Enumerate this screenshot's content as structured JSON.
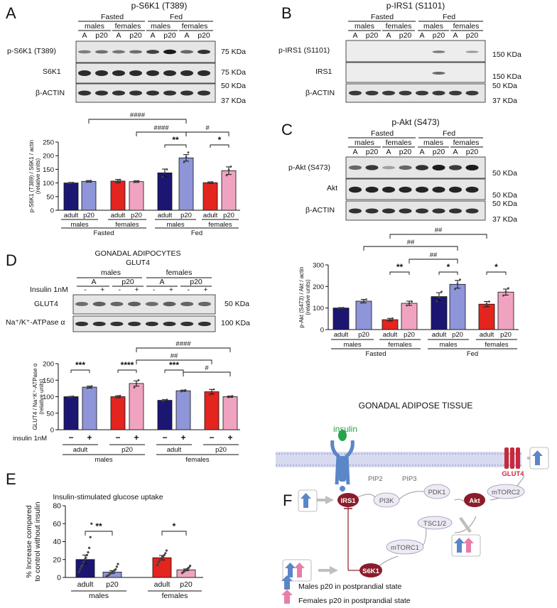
{
  "colors": {
    "navy": "#1c1673",
    "lavender": "#8e95d8",
    "red": "#e4241f",
    "pink": "#f0a3c0",
    "blot_bg": "#e6e6e6",
    "membrane": "#c7c9e6",
    "receptor": "#5b86c8",
    "insulin_green": "#27a34a",
    "node_dark": "#8b1c2a",
    "node_light": "#eeeaf3",
    "glut4_red": "#c8293a"
  },
  "panelA": {
    "label": "A",
    "title": "p-S6K1 (T389)",
    "groups": [
      "Fasted",
      "Fed"
    ],
    "sexes": [
      "males",
      "females",
      "males",
      "females"
    ],
    "lanes": [
      "A",
      "p20",
      "A",
      "p20",
      "A",
      "p20",
      "A",
      "p20"
    ],
    "rows": [
      "p-S6K1 (T389)",
      "S6K1",
      "β-ACTIN"
    ],
    "markers": [
      "75 KDa",
      "75 KDa",
      "50 KDa",
      "37 KDa"
    ]
  },
  "panelB": {
    "label": "B",
    "title": "p-IRS1 (S1101)",
    "groups": [
      "Fasted",
      "Fed"
    ],
    "sexes": [
      "males",
      "females",
      "males",
      "females"
    ],
    "lanes": [
      "A",
      "p20",
      "A",
      "p20",
      "A",
      "p20",
      "A",
      "p20"
    ],
    "rows": [
      "p-IRS1 (S1101)",
      "IRS1",
      "β-ACTIN"
    ],
    "markers": [
      "150 KDa",
      "150 KDa",
      "50 KDa",
      "37 KDa"
    ]
  },
  "panelC": {
    "label": "C",
    "title": "p-Akt (S473)",
    "groups": [
      "Fasted",
      "Fed"
    ],
    "sexes": [
      "males",
      "females",
      "males",
      "females"
    ],
    "lanes": [
      "A",
      "p20",
      "A",
      "p20",
      "A",
      "p20",
      "A",
      "p20"
    ],
    "rows": [
      "p-Akt (S473)",
      "Akt",
      "β-ACTIN"
    ],
    "markers": [
      "50 KDa",
      "50 KDa",
      "50 KDa",
      "37 KDa"
    ]
  },
  "panelD": {
    "label": "D",
    "title1": "GONADAL ADIPOCYTES",
    "title2": "GLUT4",
    "sexes": [
      "males",
      "females"
    ],
    "ages": [
      "A",
      "p20",
      "A",
      "p20"
    ],
    "insulin_label": "Insulin 1nM",
    "insulin": [
      "-",
      "+",
      "-",
      "+",
      "-",
      "+",
      "-",
      "+"
    ],
    "rows": [
      "GLUT4",
      "Na⁺/K⁺-ATPase α"
    ],
    "markers": [
      "50 KDa",
      "100 KDa"
    ]
  },
  "chart_data": [
    {
      "id": "A",
      "type": "bar",
      "ylabel": "p-S6K1 (T389) / S6K1 / actin",
      "ylabel2": "(relative units)",
      "yticks": [
        "0",
        "50",
        "100",
        "150",
        "200",
        "250"
      ],
      "ylim": [
        0,
        250
      ],
      "categories": [
        "adult",
        "p20",
        "adult",
        "p20",
        "adult",
        "p20",
        "adult",
        "p20"
      ],
      "values": [
        100,
        106,
        107,
        105,
        137,
        192,
        101,
        145
      ],
      "errors": [
        2,
        3,
        6,
        3,
        14,
        12,
        3,
        14
      ],
      "points": [
        [
          99,
          100,
          101
        ],
        [
          104,
          106,
          108
        ],
        [
          102,
          107,
          112
        ],
        [
          103,
          105,
          107
        ],
        [
          122,
          137,
          150
        ],
        [
          176,
          195,
          212
        ],
        [
          99,
          101,
          103
        ],
        [
          128,
          148,
          160
        ]
      ],
      "sexes": [
        "males",
        "females",
        "males",
        "females"
      ],
      "conditions": [
        "Fasted",
        "Fed"
      ],
      "annotations": [
        "####",
        "####",
        "#",
        "**",
        "*"
      ]
    },
    {
      "id": "C",
      "type": "bar",
      "ylabel": "p-Akt (S473) / Akt / actin",
      "ylabel2": "(relative units)",
      "yticks": [
        "0",
        "100",
        "200",
        "300"
      ],
      "ylim": [
        0,
        300
      ],
      "categories": [
        "adult",
        "p20",
        "adult",
        "p20",
        "adult",
        "p20",
        "adult",
        "p20"
      ],
      "values": [
        100,
        132,
        46,
        122,
        153,
        210,
        118,
        174
      ],
      "errors": [
        2,
        8,
        6,
        10,
        18,
        18,
        12,
        14
      ],
      "points": [
        [
          99,
          100,
          101
        ],
        [
          124,
          132,
          140
        ],
        [
          40,
          46,
          52
        ],
        [
          112,
          122,
          130
        ],
        [
          132,
          150,
          176
        ],
        [
          188,
          212,
          232
        ],
        [
          104,
          118,
          130
        ],
        [
          158,
          176,
          192
        ]
      ],
      "sexes": [
        "males",
        "females",
        "males",
        "females"
      ],
      "conditions": [
        "Fasted",
        "Fed"
      ],
      "annotations": [
        "##",
        "##",
        "##",
        "**",
        "*",
        "*"
      ]
    },
    {
      "id": "D",
      "type": "bar",
      "ylabel": "GLUT4 / Na⁺K⁺-ATPase α",
      "ylabel2": "(relative units)",
      "yticks": [
        "0",
        "50",
        "100",
        "150",
        "200"
      ],
      "ylim": [
        0,
        200
      ],
      "categories": [
        "−",
        "+",
        "−",
        "+",
        "−",
        "+",
        "−",
        "+"
      ],
      "insulin_row_label": "insulin 1nM",
      "ages": [
        "adult",
        "p20",
        "adult",
        "p20"
      ],
      "sexes": [
        "males",
        "females"
      ],
      "values": [
        100,
        129,
        100,
        140,
        89,
        118,
        115,
        100
      ],
      "errors": [
        1,
        3,
        3,
        8,
        2,
        2,
        7,
        2
      ],
      "points": [
        [
          99,
          100,
          101
        ],
        [
          126,
          129,
          132
        ],
        [
          97,
          100,
          103
        ],
        [
          128,
          140,
          150
        ],
        [
          87,
          89,
          91
        ],
        [
          116,
          118,
          120
        ],
        [
          106,
          115,
          122
        ],
        [
          98,
          100,
          102
        ]
      ],
      "annotations": [
        "####",
        "##",
        "#",
        "***",
        "****",
        "***"
      ]
    },
    {
      "id": "E",
      "type": "bar",
      "title": "Insulin-stimulated glucose uptake",
      "ylabel": "% Increase compared",
      "ylabel2": "to control without insulin",
      "yticks": [
        "0",
        "20",
        "40",
        "60",
        "80"
      ],
      "ylim": [
        0,
        80
      ],
      "categories": [
        "adult",
        "p20",
        "adult",
        "p20"
      ],
      "groups": [
        "males",
        "females"
      ],
      "values": [
        20,
        6,
        22,
        8.5
      ],
      "errors": [
        5,
        1.5,
        2.5,
        1
      ],
      "points": [
        [
          6,
          9,
          12,
          14,
          17,
          20,
          22,
          25,
          28,
          33,
          45,
          60
        ],
        [
          1,
          2,
          3,
          4,
          5,
          6,
          7,
          8,
          9,
          12,
          15
        ],
        [
          14,
          17,
          19,
          20,
          22,
          23,
          25,
          27,
          30
        ],
        [
          5,
          6,
          7,
          8,
          9,
          10,
          11,
          13
        ]
      ],
      "annotations": [
        "**",
        "*"
      ]
    }
  ],
  "panelE": {
    "label": "E"
  },
  "panelF": {
    "label": "F",
    "title": "GONADAL ADIPOSE TISSUE",
    "insulin": "insulin",
    "pip2": "PIP2",
    "pip3": "PIP3",
    "nodes": {
      "irs1": "IRS1",
      "pi3k": "PI3K",
      "pdk1": "PDK1",
      "akt": "Akt",
      "mtorc2": "mTORC2",
      "tsc": "TSC1/2",
      "mtorc1": "mTORC1",
      "s6k1": "S6K1",
      "glut4": "GLUT4"
    },
    "legend": [
      "Males p20 in postprandial state",
      "Females p20 in postprandial state"
    ]
  }
}
